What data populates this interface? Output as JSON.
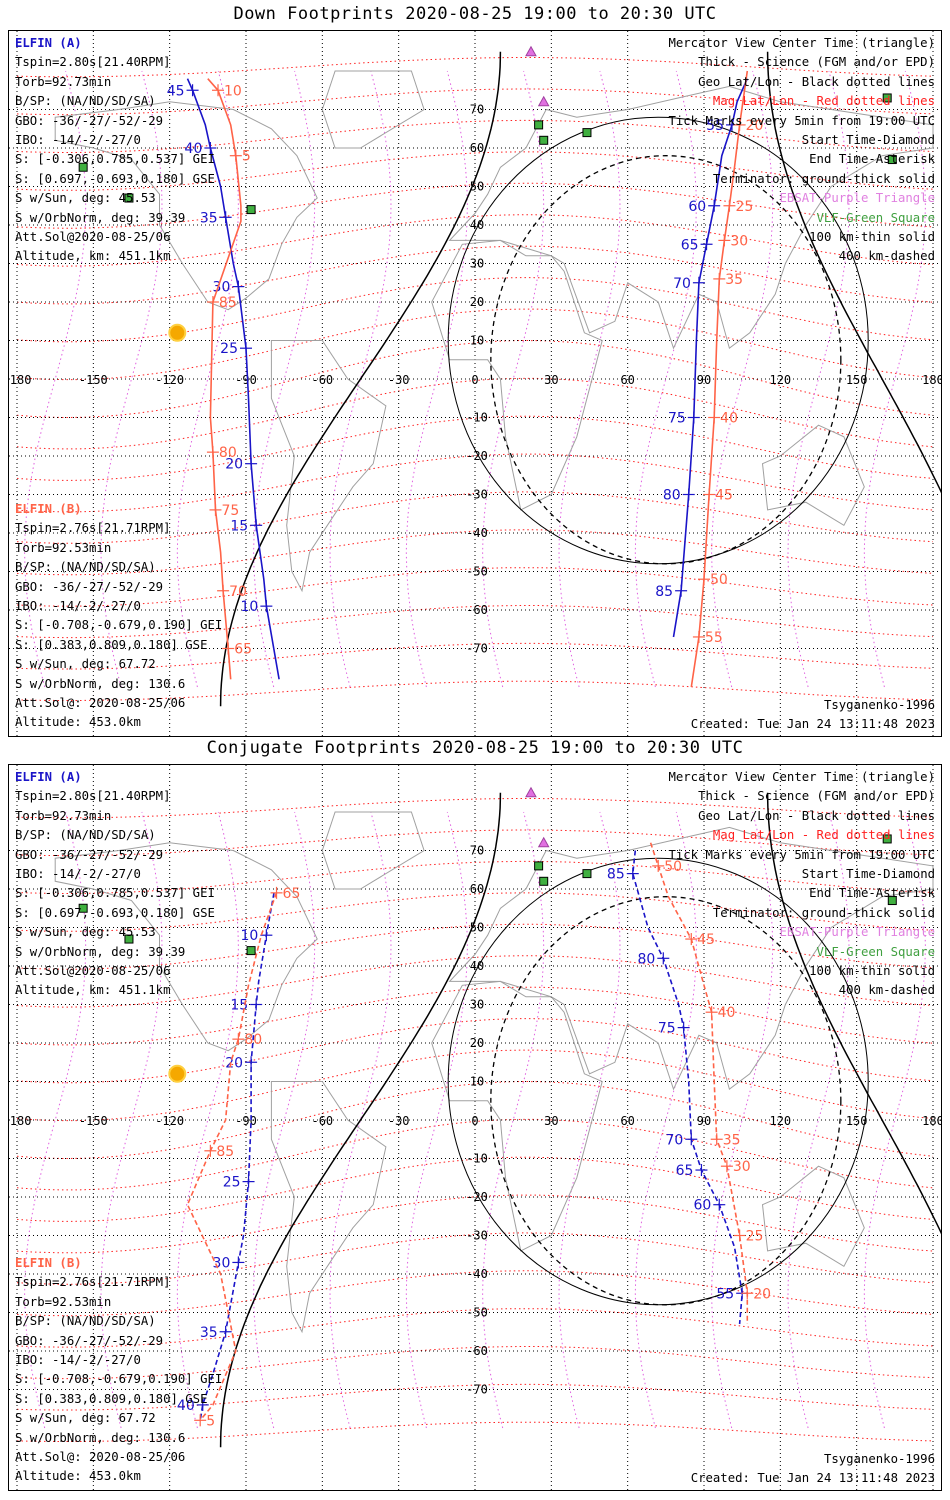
{
  "panels": [
    {
      "title": "Down Footprints 2020-08-25 19:00 to 20:30 UTC",
      "elfin_a": {
        "header": "ELFIN (A)",
        "lines": [
          "Tspin=2.80s[21.40RPM]",
          "Torb=92.73min",
          "B/SP: (NA/ND/SD/SA)",
          "GBO: -36/-27/-52/-29",
          "IBO: -14/-2/-27/0",
          "S: [-0.306,0.785,0.537] GEI",
          "S: [0.697,-0.693,0.180] GSE",
          "S w/Sun, deg: 45.53",
          "S w/OrbNorm, deg: 39.39",
          "Att.Sol@2020-08-25/06",
          "Altitude, km: 451.1km"
        ]
      },
      "elfin_b": {
        "header": "ELFIN (B)",
        "lines": [
          "Tspin=2.76s[21.71RPM]",
          "Torb=92.53min",
          "B/SP: (NA/ND/SD/SA)",
          "GBO: -36/-27/-52/-29",
          "IBO: -14/-2/-27/0",
          "S: [-0.708,-0.679,0.190] GEI",
          "S: [0.383,0.809,0.180] GSE",
          "S w/Sun, deg: 67.72",
          "S w/OrbNorm, deg: 130.6",
          "Att.Sol@: 2020-08-25/06",
          "Altitude: 453.0km"
        ]
      },
      "legend": [
        "Mercator View Center Time (triangle)",
        "Thick - Science (FGM and/or EPD)",
        "Geo Lat/Lon - Black dotted lines",
        "Mag Lat/Lon - Red dotted lines",
        "Tick Marks every 5min from 19:00 UTC",
        "Start Time-Diamond",
        "End Time-Asterisk",
        "Terminator: ground-thick solid",
        "EBSAT-Purple Triangle",
        "VLF-Green Square",
        "100 km-thin solid",
        "400 km-dashed"
      ],
      "model": "Tsyganenko-1996",
      "created": "Created: Tue Jan 24 13:11:48 2023",
      "track_a": [
        {
          "lat": 78,
          "lon": -113
        },
        {
          "lat": 75,
          "lon": -111,
          "label": "45"
        },
        {
          "lat": 66,
          "lon": -106
        },
        {
          "lat": 60,
          "lon": -104,
          "label": "40"
        },
        {
          "lat": 50,
          "lon": -100
        },
        {
          "lat": 42,
          "lon": -98,
          "label": "35"
        },
        {
          "lat": 30,
          "lon": -95
        },
        {
          "lat": 24,
          "lon": -93,
          "label": "30"
        },
        {
          "lat": 8,
          "lon": -90,
          "label": "25"
        },
        {
          "lat": -5,
          "lon": -89
        },
        {
          "lat": -22,
          "lon": -88,
          "label": "20"
        },
        {
          "lat": -38,
          "lon": -86,
          "label": "15"
        },
        {
          "lat": -52,
          "lon": -83
        },
        {
          "lat": -59,
          "lon": -82,
          "label": "10"
        },
        {
          "lat": -78,
          "lon": -77
        }
      ],
      "track_b": [
        {
          "lat": 78,
          "lon": -105
        },
        {
          "lat": 75,
          "lon": -101,
          "label": "10"
        },
        {
          "lat": 66,
          "lon": -96
        },
        {
          "lat": 58,
          "lon": -94,
          "label": "5"
        },
        {
          "lat": 45,
          "lon": -92
        },
        {
          "lat": 41,
          "lon": -92
        },
        {
          "lat": 20,
          "lon": -103,
          "label": "85"
        },
        {
          "lat": -10,
          "lon": -104
        },
        {
          "lat": -19,
          "lon": -103,
          "label": "80"
        },
        {
          "lat": -34,
          "lon": -102,
          "label": "75"
        },
        {
          "lat": -45,
          "lon": -100
        },
        {
          "lat": -55,
          "lon": -99,
          "label": "70"
        },
        {
          "lat": -70,
          "lon": -97,
          "label": "65"
        },
        {
          "lat": -78,
          "lon": -96
        }
      ],
      "track_a2": [
        {
          "lat": 78,
          "lon": 107
        },
        {
          "lat": 72,
          "lon": 103
        },
        {
          "lat": 66,
          "lon": 101,
          "label": "55"
        },
        {
          "lat": 58,
          "lon": 97
        },
        {
          "lat": 45,
          "lon": 94,
          "label": "60"
        },
        {
          "lat": 35,
          "lon": 91,
          "label": "65"
        },
        {
          "lat": 25,
          "lon": 88,
          "label": "70"
        },
        {
          "lat": 10,
          "lon": 87
        },
        {
          "lat": -10,
          "lon": 86,
          "label": "75"
        },
        {
          "lat": -30,
          "lon": 84,
          "label": "80"
        },
        {
          "lat": -55,
          "lon": 81,
          "label": "85"
        },
        {
          "lat": -67,
          "lon": 78
        }
      ],
      "track_b2": [
        {
          "lat": 80,
          "lon": 107
        },
        {
          "lat": 66,
          "lon": 104,
          "label": "20"
        },
        {
          "lat": 55,
          "lon": 102
        },
        {
          "lat": 45,
          "lon": 100,
          "label": "25"
        },
        {
          "lat": 36,
          "lon": 98,
          "label": "30"
        },
        {
          "lat": 26,
          "lon": 96,
          "label": "35"
        },
        {
          "lat": 10,
          "lon": 95
        },
        {
          "lat": -10,
          "lon": 94,
          "label": "40"
        },
        {
          "lat": -30,
          "lon": 92,
          "label": "45"
        },
        {
          "lat": -52,
          "lon": 90,
          "label": "50"
        },
        {
          "lat": -67,
          "lon": 88,
          "label": "55"
        },
        {
          "lat": -80,
          "lon": 85
        }
      ]
    },
    {
      "title": "Conjugate Footprints 2020-08-25 19:00 to 20:30 UTC",
      "elfin_a": {
        "header": "ELFIN (A)",
        "lines": [
          "Tspin=2.80s[21.40RPM]",
          "Torb=92.73min",
          "B/SP: (NA/ND/SD/SA)",
          "GBO: -36/-27/-52/-29",
          "IBO: -14/-2/-27/0",
          "S: [-0.306,0.785,0.537] GEI",
          "S: [0.697,-0.693,0.180] GSE",
          "S w/Sun, deg: 45.53",
          "S w/OrbNorm, deg: 39.39",
          "Att.Sol@2020-08-25/06",
          "Altitude, km: 451.1km"
        ]
      },
      "elfin_b": {
        "header": "ELFIN (B)",
        "lines": [
          "Tspin=2.76s[21.71RPM]",
          "Torb=92.53min",
          "B/SP: (NA/ND/SD/SA)",
          "GBO: -36/-27/-52/-29",
          "IBO: -14/-2/-27/0",
          "S: [-0.708,-0.679,0.190] GEI",
          "S: [0.383,0.809,0.180] GSE",
          "S w/Sun, deg: 67.72",
          "S w/OrbNorm, deg: 130.6",
          "Att.Sol@: 2020-08-25/06",
          "Altitude: 453.0km"
        ]
      },
      "legend": [
        "Mercator View Center Time (triangle)",
        "Thick - Science (FGM and/or EPD)",
        "Geo Lat/Lon - Black dotted lines",
        "Mag Lat/Lon - Red dotted lines",
        "Tick Marks every 5min from 19:00 UTC",
        "Start Time-Diamond",
        "End Time-Asterisk",
        "Terminator: ground-thick solid",
        "EBSAT-Purple Triangle",
        "VLF-Green Square",
        "100 km-thin solid",
        "400 km-dashed"
      ],
      "model": "Tsyganenko-1996",
      "created": "Created: Tue Jan 24 13:11:48 2023",
      "track_a": [
        {
          "lat": 59,
          "lon": -79
        },
        {
          "lat": 48,
          "lon": -82,
          "label": "10"
        },
        {
          "lat": 36,
          "lon": -85
        },
        {
          "lat": 30,
          "lon": -86,
          "label": "15"
        },
        {
          "lat": 15,
          "lon": -88,
          "label": "20"
        },
        {
          "lat": 0,
          "lon": -88
        },
        {
          "lat": -16,
          "lon": -89,
          "label": "25"
        },
        {
          "lat": -30,
          "lon": -91
        },
        {
          "lat": -37,
          "lon": -93,
          "label": "30"
        },
        {
          "lat": -55,
          "lon": -98,
          "label": "35"
        },
        {
          "lat": -66,
          "lon": -103
        },
        {
          "lat": -74,
          "lon": -107,
          "label": "40"
        },
        {
          "lat": -78,
          "lon": -108
        }
      ],
      "track_b": [
        {
          "lat": 59,
          "lon": -78,
          "label": "65"
        },
        {
          "lat": 48,
          "lon": -84
        },
        {
          "lat": 35,
          "lon": -89
        },
        {
          "lat": 21,
          "lon": -93,
          "label": "80"
        },
        {
          "lat": 15,
          "lon": -96
        },
        {
          "lat": 0,
          "lon": -98
        },
        {
          "lat": -8,
          "lon": -104,
          "label": "85"
        },
        {
          "lat": -22,
          "lon": -113
        },
        {
          "lat": -40,
          "lon": -100
        },
        {
          "lat": -60,
          "lon": -94
        },
        {
          "lat": -74,
          "lon": -103
        },
        {
          "lat": -78,
          "lon": -108,
          "label": "5"
        }
      ],
      "track_a2": [
        {
          "lat": 70,
          "lon": 63
        },
        {
          "lat": 64,
          "lon": 62,
          "label": "85"
        },
        {
          "lat": 50,
          "lon": 68
        },
        {
          "lat": 42,
          "lon": 74,
          "label": "80"
        },
        {
          "lat": 30,
          "lon": 80
        },
        {
          "lat": 24,
          "lon": 82,
          "label": "75"
        },
        {
          "lat": 10,
          "lon": 84
        },
        {
          "lat": -5,
          "lon": 85,
          "label": "70"
        },
        {
          "lat": -13,
          "lon": 89,
          "label": "65"
        },
        {
          "lat": -22,
          "lon": 96,
          "label": "60"
        },
        {
          "lat": -33,
          "lon": 102
        },
        {
          "lat": -45,
          "lon": 105,
          "label": "55"
        },
        {
          "lat": -53,
          "lon": 104
        }
      ],
      "track_b2": [
        {
          "lat": 72,
          "lon": 69
        },
        {
          "lat": 66,
          "lon": 72,
          "label": "50"
        },
        {
          "lat": 58,
          "lon": 76
        },
        {
          "lat": 47,
          "lon": 85,
          "label": "45"
        },
        {
          "lat": 35,
          "lon": 90
        },
        {
          "lat": 28,
          "lon": 93,
          "label": "40"
        },
        {
          "lat": 10,
          "lon": 94
        },
        {
          "lat": -5,
          "lon": 95,
          "label": "35"
        },
        {
          "lat": -12,
          "lon": 99,
          "label": "30"
        },
        {
          "lat": -30,
          "lon": 104,
          "label": "25"
        },
        {
          "lat": -45,
          "lon": 107,
          "label": "20"
        },
        {
          "lat": -53,
          "lon": 107
        }
      ]
    }
  ],
  "axis_lon_labels": [
    "-180",
    "-150",
    "-120",
    "-90",
    "-60",
    "-30",
    "0",
    "30",
    "60",
    "90",
    "120",
    "150",
    "180"
  ],
  "axis_lat_labels": [
    "70",
    "60",
    "50",
    "40",
    "30",
    "20",
    "10",
    "0",
    "-10",
    "-20",
    "-30",
    "-40",
    "-50",
    "-60",
    "-70"
  ],
  "colors": {
    "elfin_a": "#1a14c8",
    "elfin_b": "#ff6347",
    "mag_grid": "#ff2020",
    "geo_grid": "#000000",
    "ebex": "#e060e0",
    "vlf": "#30a030",
    "coast": "#a0a0a0"
  }
}
